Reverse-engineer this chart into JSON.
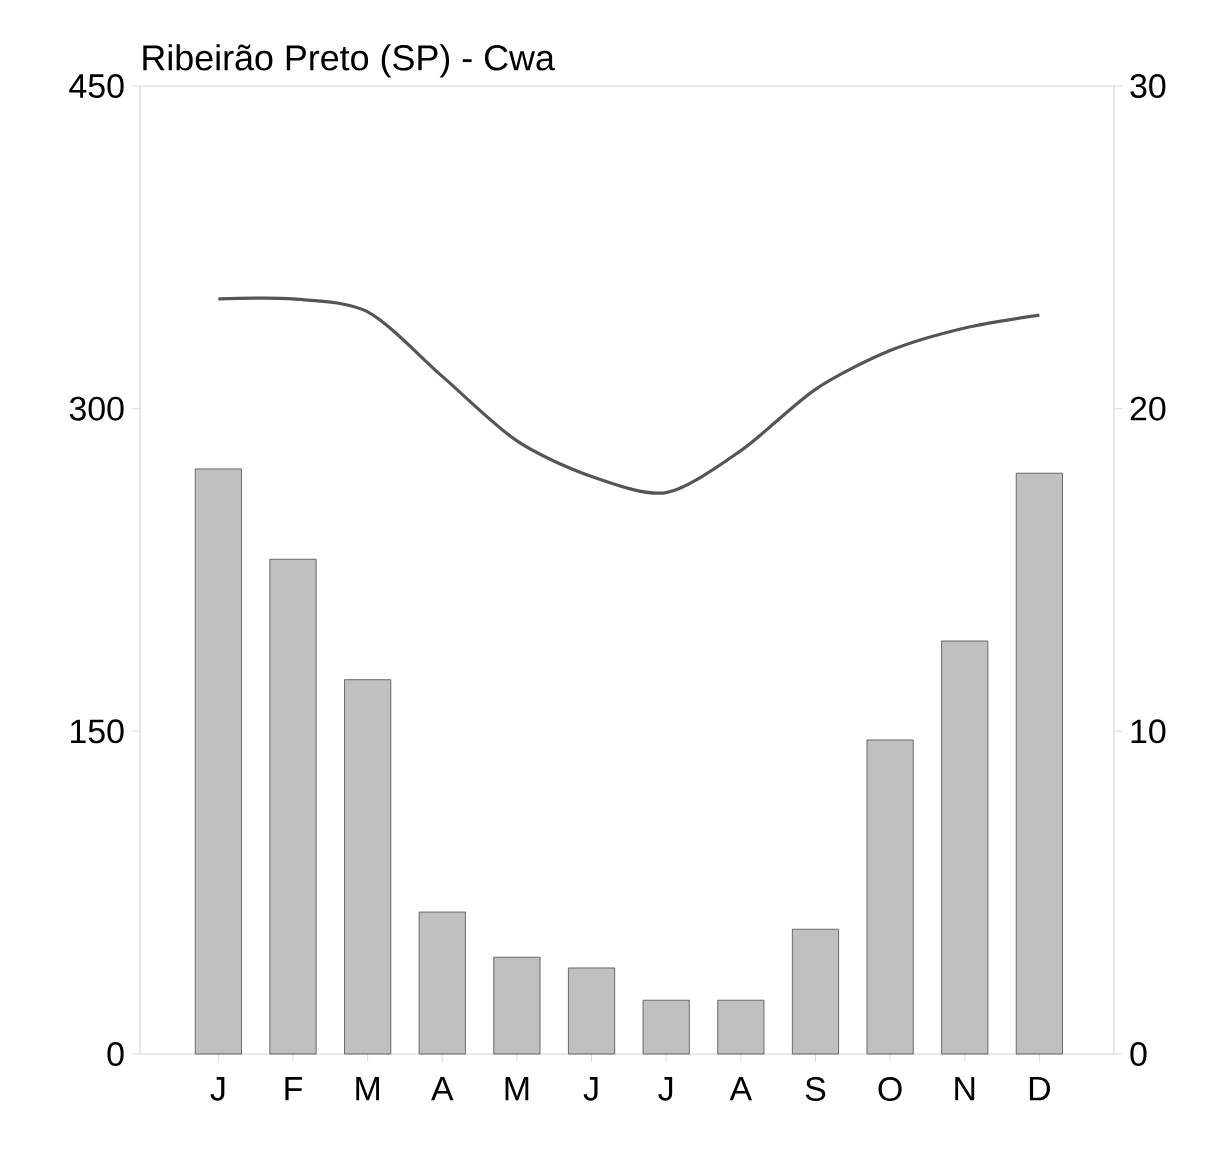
{
  "chart_data": {
    "type": "bar",
    "title": "Ribeirão Preto (SP) - Cwa",
    "categories": [
      "J",
      "F",
      "M",
      "A",
      "M",
      "J",
      "J",
      "A",
      "S",
      "O",
      "N",
      "D"
    ],
    "series": [
      {
        "axis": "y",
        "color": "#c0c0c0",
        "values": [
          272,
          230,
          174,
          66,
          45,
          40,
          25,
          25,
          58,
          146,
          192,
          270
        ]
      },
      {
        "type": "line",
        "axis": "y2",
        "color": "#555555",
        "values": [
          23.4,
          23.4,
          23.0,
          21.0,
          19.0,
          17.9,
          17.4,
          18.7,
          20.6,
          21.8,
          22.5,
          22.9
        ]
      }
    ],
    "ylim": [
      0,
      450
    ],
    "yticks": [
      0,
      150,
      300,
      450
    ],
    "y2lim": [
      0,
      30
    ],
    "y2ticks": [
      0,
      10,
      20,
      30
    ]
  }
}
